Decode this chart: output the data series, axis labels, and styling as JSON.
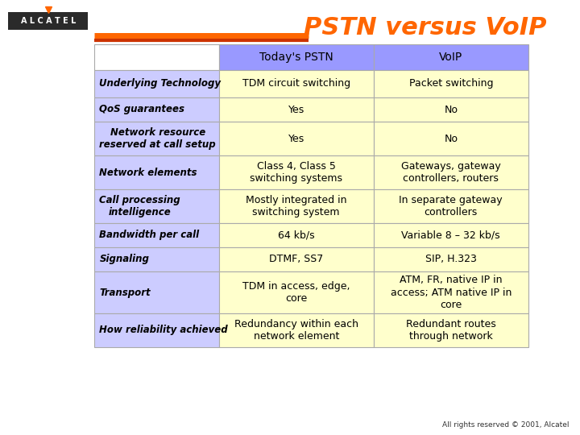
{
  "title": "PSTN versus VoIP",
  "title_color": "#FF6600",
  "bg_color": "#FFFFFF",
  "header_row": [
    "Today's PSTN",
    "VoIP"
  ],
  "header_bg": "#9999FF",
  "cell_bg_label": "#CCCCFF",
  "cell_bg_value": "#FFFFCC",
  "rows": [
    {
      "label": "Underlying Technology",
      "col1": "TDM circuit switching",
      "col2": "Packet switching"
    },
    {
      "label": "QoS guarantees",
      "col1": "Yes",
      "col2": "No"
    },
    {
      "label": "Network resource\nreserved at call setup",
      "col1": "Yes",
      "col2": "No"
    },
    {
      "label": "Network elements",
      "col1": "Class 4, Class 5\nswitching systems",
      "col2": "Gateways, gateway\ncontrollers, routers"
    },
    {
      "label": "Call processing\nintelligence",
      "col1": "Mostly integrated in\nswitching system",
      "col2": "In separate gateway\ncontrollers"
    },
    {
      "label": "Bandwidth per call",
      "col1": "64 kb/s",
      "col2": "Variable 8 – 32 kb/s"
    },
    {
      "label": "Signaling",
      "col1": "DTMF, SS7",
      "col2": "SIP, H.323"
    },
    {
      "label": "Transport",
      "col1": "TDM in access, edge,\ncore",
      "col2": "ATM, FR, native IP in\naccess; ATM native IP in\ncore"
    },
    {
      "label": "How reliability achieved",
      "col1": "Redundancy within each\nnetwork element",
      "col2": "Redundant routes\nthrough network"
    }
  ],
  "footer": "All rights reserved © 2001, Alcatel",
  "alcatel_color": "#000000",
  "logo_bg": "#333333",
  "orange_line_color": "#FF6600",
  "border_color": "#AAAAAA"
}
